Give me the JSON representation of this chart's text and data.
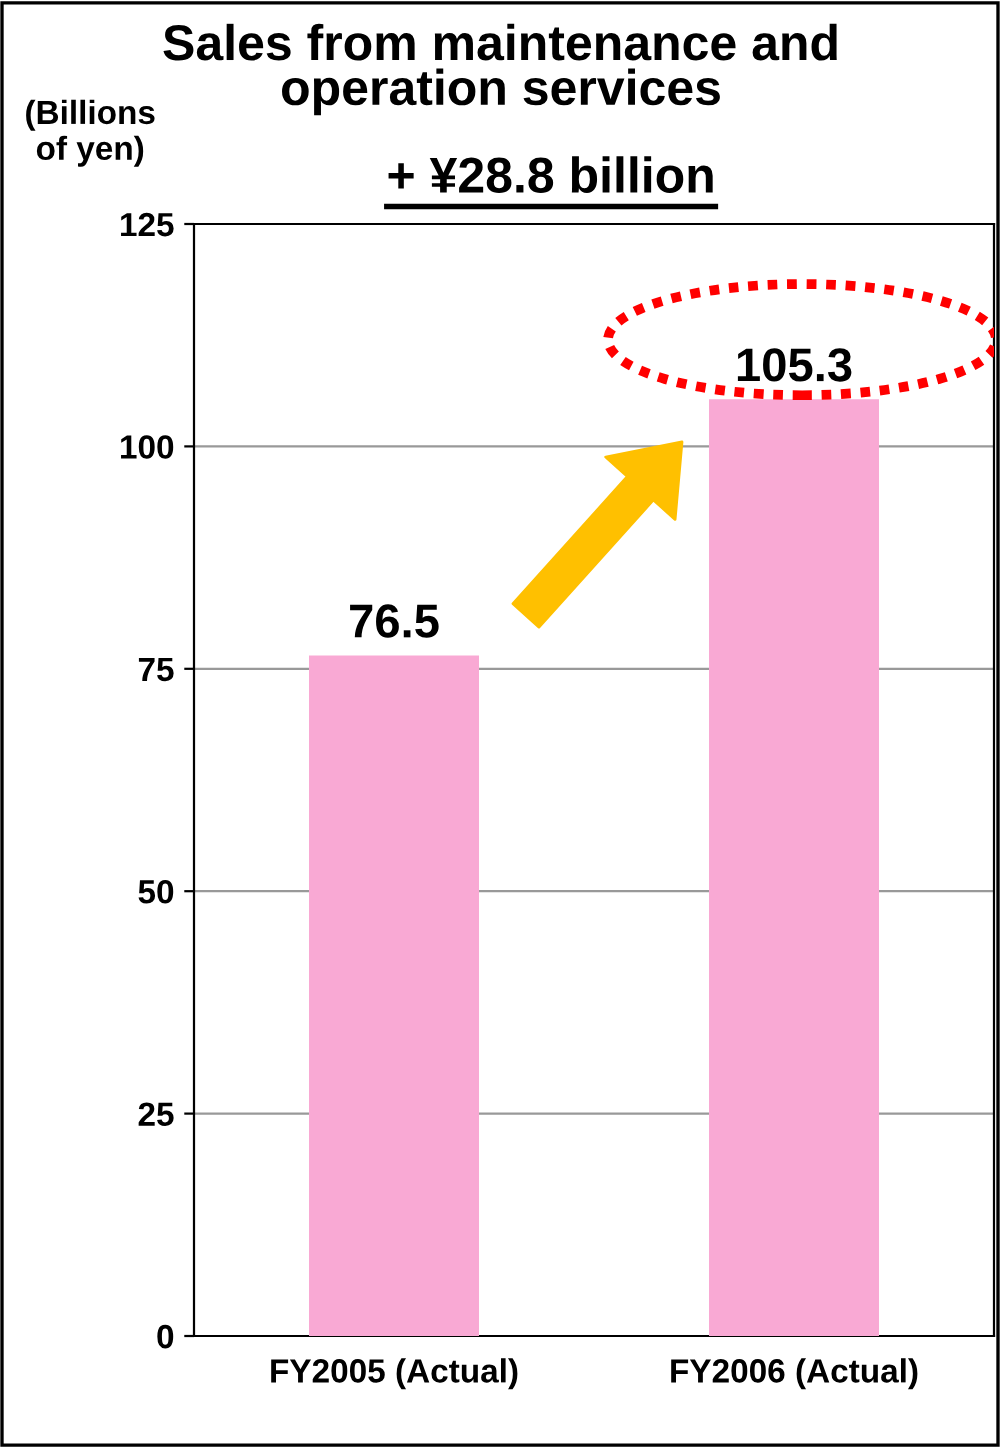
{
  "chart_data": {
    "type": "bar",
    "title": "Sales from maintenance and\noperation services",
    "subtitle": "+ ¥28.8 billion",
    "ylabel": "(Billions\nof yen)",
    "categories": [
      "FY2005 (Actual)",
      "FY2006 (Actual)"
    ],
    "values": [
      76.5,
      105.3
    ],
    "color": "#f9a9d4",
    "ylim": [
      0,
      125
    ],
    "yticks": [
      0,
      25,
      50,
      75,
      100,
      125
    ],
    "grid": "y",
    "data_labels": true
  }
}
